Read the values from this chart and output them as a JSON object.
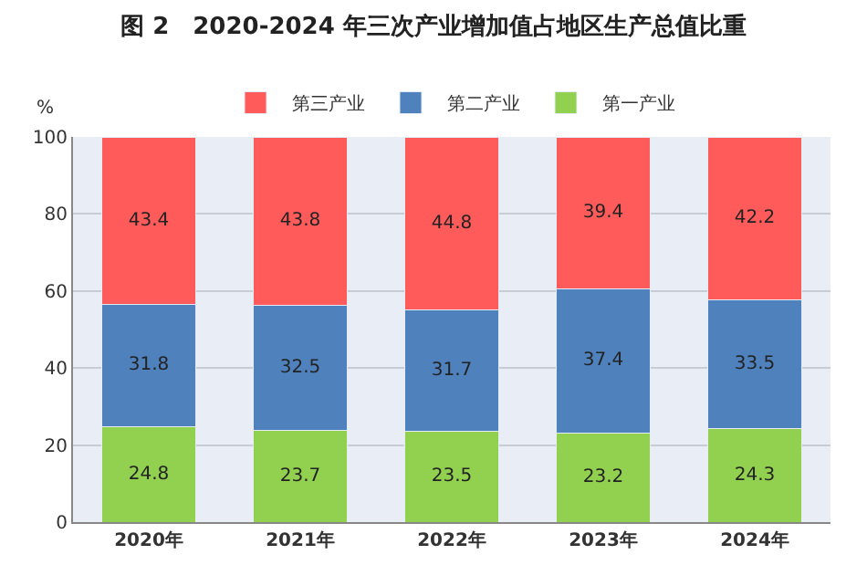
{
  "chart_data": {
    "type": "bar",
    "title": "图 2　2020-2024 年三次产业增加值占地区生产总值比重",
    "ylabel": "%",
    "categories": [
      "2020年",
      "2021年",
      "2022年",
      "2023年",
      "2024年"
    ],
    "series": [
      {
        "name": "第一产业",
        "color": "#92d050",
        "values": [
          24.8,
          23.7,
          23.5,
          23.2,
          24.3
        ]
      },
      {
        "name": "第二产业",
        "color": "#4f81bd",
        "values": [
          31.8,
          32.5,
          31.7,
          37.4,
          33.5
        ]
      },
      {
        "name": "第三产业",
        "color": "#ff5b5b",
        "values": [
          43.4,
          43.8,
          44.8,
          39.4,
          42.2
        ]
      }
    ],
    "stacked": true,
    "data_labels": true,
    "ylim": [
      0,
      100
    ],
    "yticks": [
      0,
      20,
      40,
      60,
      80,
      100
    ],
    "grid": "y",
    "legend": "top"
  }
}
